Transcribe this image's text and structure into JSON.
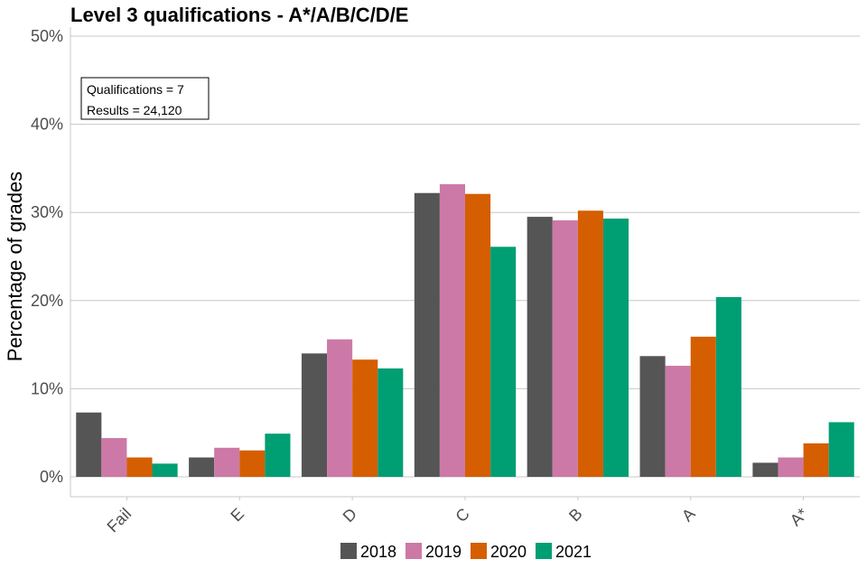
{
  "chart_data": {
    "type": "bar",
    "title": "Level 3 qualifications  - A*/A/B/C/D/E",
    "ylabel": "Percentage of grades",
    "xlabel": "",
    "ylim": [
      0,
      50
    ],
    "yticks": [
      "0%",
      "10%",
      "20%",
      "30%",
      "40%",
      "50%"
    ],
    "categories": [
      "Fail",
      "E",
      "D",
      "C",
      "B",
      "A",
      "A*"
    ],
    "series": [
      {
        "name": "2018",
        "color": "#555555",
        "values": [
          7.3,
          2.2,
          14.0,
          32.2,
          29.5,
          13.7,
          1.6
        ]
      },
      {
        "name": "2019",
        "color": "#cc79a7",
        "values": [
          4.4,
          3.3,
          15.6,
          33.2,
          29.1,
          12.6,
          2.2
        ]
      },
      {
        "name": "2020",
        "color": "#d55e00",
        "values": [
          2.2,
          3.0,
          13.3,
          32.1,
          30.2,
          15.9,
          3.8
        ]
      },
      {
        "name": "2021",
        "color": "#009e73",
        "values": [
          1.5,
          4.9,
          12.3,
          26.1,
          29.3,
          20.4,
          6.2
        ]
      }
    ],
    "annotation": [
      "Qualifications = 7",
      "Results = 24,120"
    ],
    "legend_position": "bottom",
    "grid": "horizontal"
  }
}
